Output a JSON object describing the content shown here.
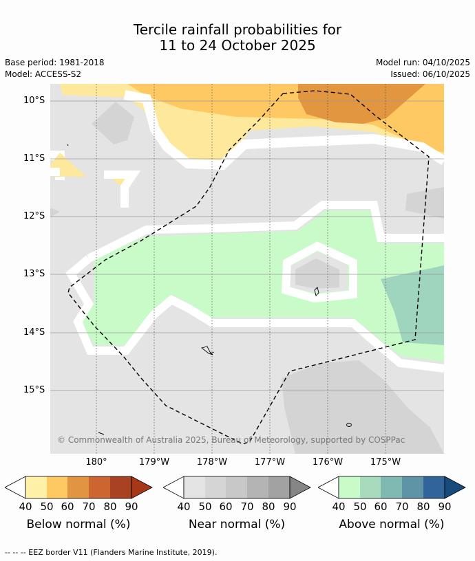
{
  "title_line1": "Tercile rainfall probabilities for",
  "title_line2": "11 to 24 October 2025",
  "base_period": "Base period: 1981-2018",
  "model": "Model: ACCESS-S2",
  "model_run": "Model run: 04/10/2025",
  "issued": "Issued: 06/10/2025",
  "lat_labels": [
    "10°S",
    "11°S",
    "12°S",
    "13°S",
    "14°S",
    "15°S"
  ],
  "lon_labels": [
    "180°",
    "179°W",
    "178°W",
    "177°W",
    "176°W",
    "175°W"
  ],
  "credit": "© Commonwealth of Australia 2025, Bureau of Meteorology, supported by COSPPac",
  "legends": [
    {
      "label": "Below normal (%)",
      "ticks": [
        "40",
        "50",
        "60",
        "70",
        "80",
        "90"
      ],
      "colors": [
        "#fff1a8",
        "#fec963",
        "#e19543",
        "#cd6530",
        "#a94223",
        "#a73718"
      ]
    },
    {
      "label": "Near normal (%)",
      "ticks": [
        "40",
        "50",
        "60",
        "70",
        "80",
        "90"
      ],
      "colors": [
        "#e4e4e4",
        "#d5d5d5",
        "#c8c8c8",
        "#b4b4b4",
        "#a2a2a2",
        "#868686"
      ]
    },
    {
      "label": "Above normal (%)",
      "ticks": [
        "40",
        "50",
        "60",
        "70",
        "80",
        "90"
      ],
      "colors": [
        "#c9fbc9",
        "#a8dbbd",
        "#80b9b2",
        "#5e94a6",
        "#31649b",
        "#184b7d"
      ]
    }
  ],
  "colors": {
    "bn40": "#fee89c",
    "bn50": "#fec963",
    "bn60": "#e1963f",
    "nn40": "#e4e4e4",
    "nn50": "#d4d4d4",
    "an40": "#c9fbc9",
    "an50": "#9fd4bf"
  },
  "footer": "--  --  -- EEZ border V11 (Flanders Marine Institute, 2019)."
}
